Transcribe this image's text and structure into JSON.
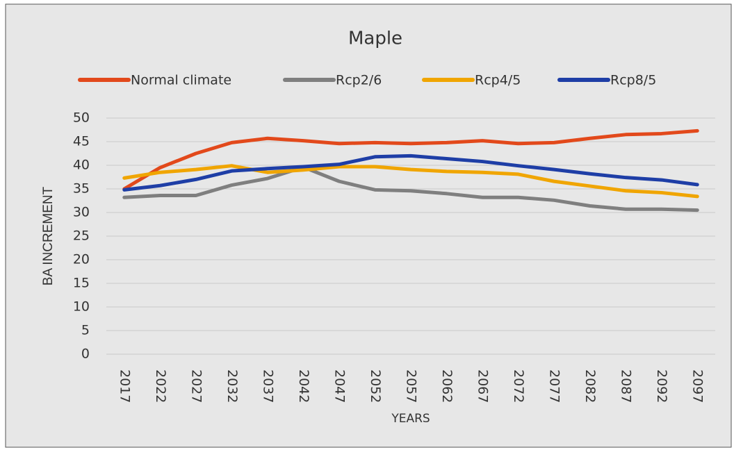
{
  "chart_data": {
    "type": "line",
    "title": "Maple",
    "x_label": "YEARS",
    "y_label": "BA INCREMENT",
    "categories": [
      "2017",
      "2022",
      "2027",
      "2032",
      "2037",
      "2042",
      "2047",
      "2052",
      "2057",
      "2062",
      "2067",
      "2072",
      "2077",
      "2082",
      "2087",
      "2092",
      "2097"
    ],
    "series": [
      {
        "name": "Normal climate",
        "color": "#e2491b",
        "values": [
          35,
          39.5,
          42.5,
          44.8,
          45.7,
          45.2,
          44.6,
          44.8,
          44.6,
          44.8,
          45.2,
          44.6,
          44.8,
          45.7,
          46.5,
          46.7,
          47.3
        ]
      },
      {
        "name": "Rcp2/6",
        "color": "#7f7f7f",
        "values": [
          33.2,
          33.6,
          33.6,
          35.8,
          37.2,
          39.6,
          36.6,
          34.8,
          34.6,
          34.0,
          33.2,
          33.2,
          32.6,
          31.4,
          30.7,
          30.7,
          30.5
        ]
      },
      {
        "name": "Rcp4/5",
        "color": "#f0a500",
        "values": [
          37.3,
          38.5,
          39.1,
          39.9,
          38.5,
          39.0,
          39.7,
          39.7,
          39.1,
          38.7,
          38.5,
          38.1,
          36.6,
          35.6,
          34.6,
          34.2,
          33.4
        ]
      },
      {
        "name": "Rcp8/5",
        "color": "#1e3ea6",
        "values": [
          34.8,
          35.7,
          37.0,
          38.8,
          39.3,
          39.7,
          40.2,
          41.8,
          42.0,
          41.4,
          40.8,
          39.9,
          39.1,
          38.2,
          37.4,
          36.9,
          35.9
        ]
      }
    ],
    "ylim": [
      0,
      50
    ],
    "yticks": [
      0,
      5,
      10,
      15,
      20,
      25,
      30,
      35,
      40,
      45,
      50
    ],
    "grid": true,
    "legend": "top"
  }
}
